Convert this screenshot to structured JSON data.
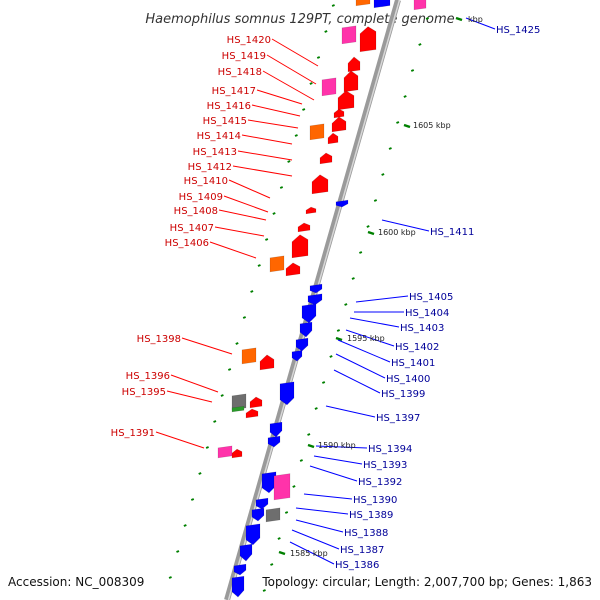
{
  "title": "Haemophilus somnus 129PT, complete genome",
  "accession": "Accession: NC_008309",
  "topology": "Topology: circular; Length: 2,007,700 bp; Genes: 1,863",
  "colors": {
    "forward": "#ff0000",
    "reverse": "#0000ff",
    "label_forward": "#cc0000",
    "label_reverse": "#000099",
    "rna": "#ff6600",
    "pseudo": "#ff33aa",
    "other": "#555555",
    "tick": "#008000",
    "backbone": "#999999"
  },
  "position_markers": [
    "kbp",
    "1605 kbp",
    "1600 kbp",
    "1595 kbp",
    "1590 kbp",
    "1585 kbp"
  ],
  "genes_left": [
    "HS_1420",
    "HS_1419",
    "HS_1418",
    "HS_1417",
    "HS_1416",
    "HS_1415",
    "HS_1414",
    "HS_1413",
    "HS_1412",
    "HS_1410",
    "HS_1409",
    "HS_1408",
    "HS_1407",
    "HS_1406",
    "HS_1398",
    "HS_1396",
    "HS_1395",
    "HS_1391"
  ],
  "genes_right": [
    "HS_1425",
    "HS_1411",
    "HS_1405",
    "HS_1404",
    "HS_1403",
    "HS_1402",
    "HS_1401",
    "HS_1400",
    "HS_1399",
    "HS_1397",
    "HS_1394",
    "HS_1393",
    "HS_1392",
    "HS_1390",
    "HS_1389",
    "HS_1388",
    "HS_1387",
    "HS_1386"
  ]
}
